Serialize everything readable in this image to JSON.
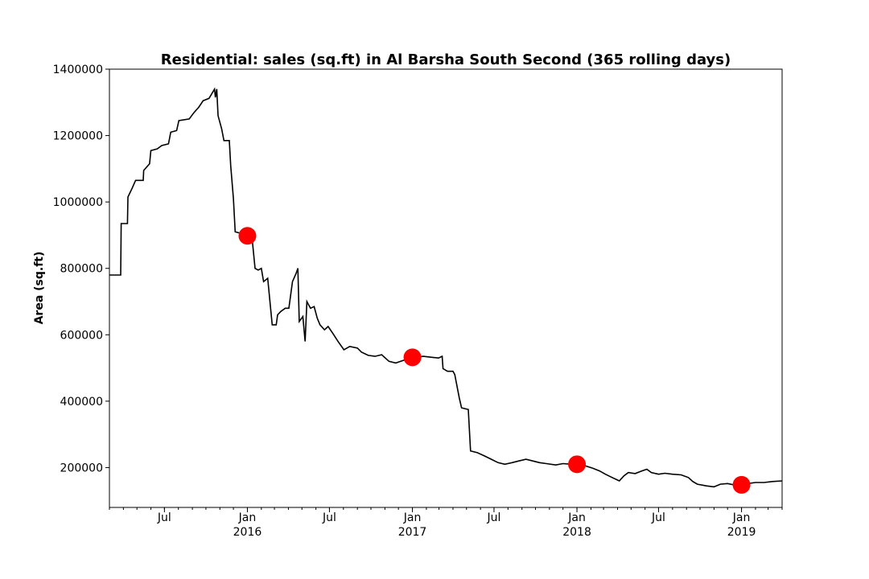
{
  "chart_data": {
    "type": "line",
    "title": "Residential: sales (sq.ft) in Al Barsha South Second (365 rolling days)",
    "xlabel": "",
    "ylabel": "Area (sq.ft)",
    "xlim": [
      "2015-03-01",
      "2019-04-01"
    ],
    "ylim": [
      80000,
      1400000
    ],
    "y_ticks": [
      200000,
      400000,
      600000,
      800000,
      1000000,
      1200000,
      1400000
    ],
    "x_ticks": [
      {
        "date": "2015-07-01",
        "label": "Jul"
      },
      {
        "date": "2016-01-01",
        "label": "Jan\n2016"
      },
      {
        "date": "2016-07-01",
        "label": "Jul"
      },
      {
        "date": "2017-01-01",
        "label": "Jan\n2017"
      },
      {
        "date": "2017-07-01",
        "label": "Jul"
      },
      {
        "date": "2018-01-01",
        "label": "Jan\n2018"
      },
      {
        "date": "2018-07-01",
        "label": "Jul"
      },
      {
        "date": "2019-01-01",
        "label": "Jan\n2019"
      }
    ],
    "grid": false,
    "series": [
      {
        "color": "#000000",
        "points": [
          [
            "2015-03-01",
            780000
          ],
          [
            "2015-03-26",
            780000
          ],
          [
            "2015-03-27",
            935000
          ],
          [
            "2015-04-10",
            935000
          ],
          [
            "2015-04-11",
            1015000
          ],
          [
            "2015-04-20",
            1040000
          ],
          [
            "2015-04-28",
            1065000
          ],
          [
            "2015-05-15",
            1065000
          ],
          [
            "2015-05-16",
            1095000
          ],
          [
            "2015-05-29",
            1115000
          ],
          [
            "2015-06-01",
            1155000
          ],
          [
            "2015-06-15",
            1160000
          ],
          [
            "2015-06-25",
            1170000
          ],
          [
            "2015-07-10",
            1175000
          ],
          [
            "2015-07-15",
            1210000
          ],
          [
            "2015-07-28",
            1215000
          ],
          [
            "2015-08-02",
            1245000
          ],
          [
            "2015-08-25",
            1250000
          ],
          [
            "2015-09-05",
            1270000
          ],
          [
            "2015-09-15",
            1285000
          ],
          [
            "2015-09-25",
            1305000
          ],
          [
            "2015-10-08",
            1312000
          ],
          [
            "2015-10-20",
            1340000
          ],
          [
            "2015-10-22",
            1315000
          ],
          [
            "2015-10-25",
            1340000
          ],
          [
            "2015-10-28",
            1260000
          ],
          [
            "2015-11-05",
            1220000
          ],
          [
            "2015-11-10",
            1185000
          ],
          [
            "2015-11-22",
            1185000
          ],
          [
            "2015-11-25",
            1110000
          ],
          [
            "2015-12-01",
            1010000
          ],
          [
            "2015-12-05",
            910000
          ],
          [
            "2016-01-01",
            900000
          ],
          [
            "2016-01-10",
            910000
          ],
          [
            "2016-01-18",
            800000
          ],
          [
            "2016-01-25",
            795000
          ],
          [
            "2016-02-01",
            800000
          ],
          [
            "2016-02-06",
            760000
          ],
          [
            "2016-02-15",
            770000
          ],
          [
            "2016-02-20",
            700000
          ],
          [
            "2016-02-25",
            630000
          ],
          [
            "2016-03-05",
            630000
          ],
          [
            "2016-03-08",
            660000
          ],
          [
            "2016-03-15",
            670000
          ],
          [
            "2016-03-25",
            680000
          ],
          [
            "2016-04-02",
            680000
          ],
          [
            "2016-04-05",
            710000
          ],
          [
            "2016-04-10",
            760000
          ],
          [
            "2016-04-18",
            785000
          ],
          [
            "2016-04-22",
            800000
          ],
          [
            "2016-04-25",
            640000
          ],
          [
            "2016-05-03",
            655000
          ],
          [
            "2016-05-08",
            580000
          ],
          [
            "2016-05-12",
            700000
          ],
          [
            "2016-05-20",
            680000
          ],
          [
            "2016-05-28",
            685000
          ],
          [
            "2016-06-04",
            650000
          ],
          [
            "2016-06-10",
            630000
          ],
          [
            "2016-06-20",
            615000
          ],
          [
            "2016-06-28",
            625000
          ],
          [
            "2016-07-08",
            605000
          ],
          [
            "2016-07-20",
            580000
          ],
          [
            "2016-08-02",
            555000
          ],
          [
            "2016-08-15",
            565000
          ],
          [
            "2016-09-01",
            560000
          ],
          [
            "2016-09-10",
            548000
          ],
          [
            "2016-09-25",
            538000
          ],
          [
            "2016-10-10",
            535000
          ],
          [
            "2016-10-25",
            540000
          ],
          [
            "2016-11-10",
            520000
          ],
          [
            "2016-11-25",
            515000
          ],
          [
            "2016-12-10",
            522000
          ],
          [
            "2016-12-25",
            528000
          ],
          [
            "2017-01-01",
            530000
          ],
          [
            "2017-01-25",
            535000
          ],
          [
            "2017-02-15",
            532000
          ],
          [
            "2017-02-28",
            530000
          ],
          [
            "2017-03-08",
            535000
          ],
          [
            "2017-03-10",
            498000
          ],
          [
            "2017-03-20",
            490000
          ],
          [
            "2017-04-01",
            490000
          ],
          [
            "2017-04-05",
            480000
          ],
          [
            "2017-04-10",
            445000
          ],
          [
            "2017-04-15",
            410000
          ],
          [
            "2017-04-20",
            380000
          ],
          [
            "2017-05-05",
            375000
          ],
          [
            "2017-05-10",
            250000
          ],
          [
            "2017-05-25",
            245000
          ],
          [
            "2017-06-10",
            235000
          ],
          [
            "2017-06-25",
            225000
          ],
          [
            "2017-07-10",
            215000
          ],
          [
            "2017-07-25",
            210000
          ],
          [
            "2017-08-10",
            215000
          ],
          [
            "2017-08-25",
            220000
          ],
          [
            "2017-09-10",
            225000
          ],
          [
            "2017-09-25",
            220000
          ],
          [
            "2017-10-10",
            215000
          ],
          [
            "2017-10-25",
            212000
          ],
          [
            "2017-11-15",
            208000
          ],
          [
            "2017-12-01",
            212000
          ],
          [
            "2017-12-20",
            210000
          ],
          [
            "2018-01-01",
            210000
          ],
          [
            "2018-01-20",
            205000
          ],
          [
            "2018-02-05",
            198000
          ],
          [
            "2018-02-20",
            190000
          ],
          [
            "2018-03-05",
            180000
          ],
          [
            "2018-03-20",
            170000
          ],
          [
            "2018-04-05",
            160000
          ],
          [
            "2018-04-15",
            175000
          ],
          [
            "2018-04-25",
            185000
          ],
          [
            "2018-05-10",
            182000
          ],
          [
            "2018-05-25",
            190000
          ],
          [
            "2018-06-05",
            195000
          ],
          [
            "2018-06-15",
            185000
          ],
          [
            "2018-07-01",
            180000
          ],
          [
            "2018-07-15",
            183000
          ],
          [
            "2018-08-01",
            180000
          ],
          [
            "2018-08-20",
            178000
          ],
          [
            "2018-09-05",
            170000
          ],
          [
            "2018-09-15",
            158000
          ],
          [
            "2018-09-25",
            150000
          ],
          [
            "2018-10-15",
            145000
          ],
          [
            "2018-11-01",
            142000
          ],
          [
            "2018-11-15",
            150000
          ],
          [
            "2018-12-01",
            152000
          ],
          [
            "2018-12-15",
            148000
          ],
          [
            "2019-01-01",
            148000
          ],
          [
            "2019-01-15",
            152000
          ],
          [
            "2019-02-01",
            155000
          ],
          [
            "2019-02-20",
            155000
          ],
          [
            "2019-03-10",
            158000
          ],
          [
            "2019-04-01",
            160000
          ]
        ]
      }
    ],
    "markers": [
      {
        "x": "2016-01-01",
        "y": 898000,
        "color": "#ff0000"
      },
      {
        "x": "2017-01-01",
        "y": 532000,
        "color": "#ff0000"
      },
      {
        "x": "2018-01-01",
        "y": 210000,
        "color": "#ff0000"
      },
      {
        "x": "2019-01-01",
        "y": 148000,
        "color": "#ff0000"
      }
    ]
  }
}
